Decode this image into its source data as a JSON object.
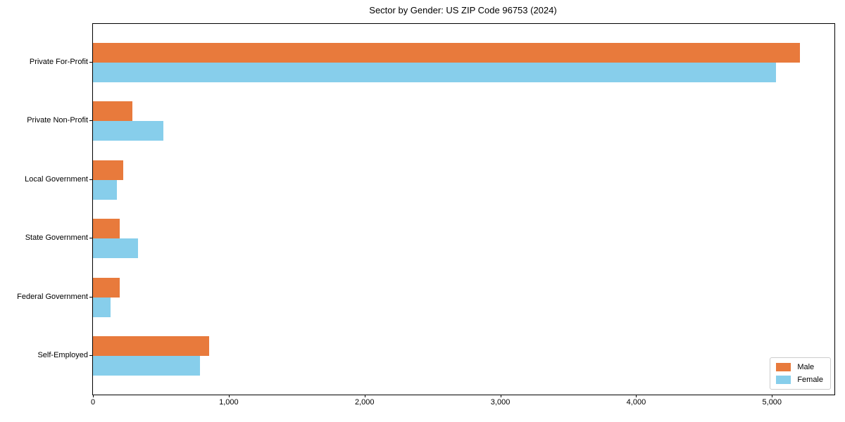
{
  "chart_data": {
    "type": "bar",
    "orientation": "horizontal",
    "title": "Sector by Gender: US ZIP Code 96753 (2024)",
    "categories": [
      "Private For-Profit",
      "Private Non-Profit",
      "Local Government",
      "State Government",
      "Federal Government",
      "Self-Employed"
    ],
    "series": [
      {
        "name": "Male",
        "color": "#E87A3C",
        "values": [
          5205,
          290,
          225,
          195,
          195,
          855
        ]
      },
      {
        "name": "Female",
        "color": "#87CEEB",
        "values": [
          5030,
          520,
          175,
          330,
          130,
          790
        ]
      }
    ],
    "xlabel": "",
    "ylabel": "",
    "xlim": [
      0,
      5460
    ],
    "xtick_values": [
      0,
      1000,
      2000,
      3000,
      4000,
      5000
    ],
    "xtick_labels": [
      "0",
      "1,000",
      "2,000",
      "3,000",
      "4,000",
      "5,000"
    ],
    "grid": false,
    "legend_position": "lower right",
    "layout": {
      "category_pad": 0.66,
      "bar_frac": 0.335
    }
  }
}
